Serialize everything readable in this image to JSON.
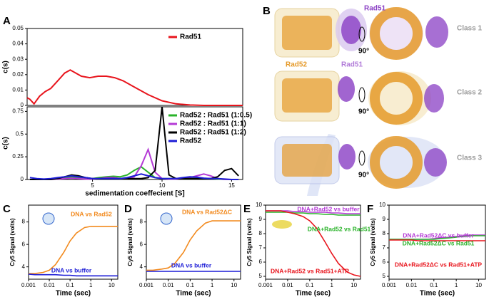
{
  "chart_data": [
    {
      "type": "line",
      "panel": "A",
      "ylabel": "c(s)",
      "xlim": [
        0.3,
        15.8
      ],
      "ylim": [
        0,
        0.05
      ],
      "yticks": [
        0,
        0.01,
        0.02,
        0.03,
        0.04,
        0.05
      ],
      "legend": "upper right",
      "x": [
        0.3,
        0.5,
        0.8,
        1.2,
        1.6,
        2,
        2.5,
        3,
        3.4,
        3.8,
        4.2,
        4.8,
        5.4,
        6,
        6.6,
        7.2,
        8,
        9,
        10,
        11,
        12,
        13,
        14,
        15,
        15.8
      ],
      "series": [
        {
          "name": "Rad51",
          "color": "#e8141c",
          "values": [
            0.005,
            0.004,
            0.001,
            0.006,
            0.009,
            0.011,
            0.016,
            0.021,
            0.023,
            0.021,
            0.019,
            0.018,
            0.019,
            0.019,
            0.018,
            0.016,
            0.012,
            0.007,
            0.003,
            0.001,
            0.0003,
            0,
            0,
            0,
            0
          ]
        }
      ]
    },
    {
      "type": "line",
      "ylabel": "c(s)",
      "xlabel": "sedimentation coeffecient [S]",
      "xlim": [
        0.3,
        15.8
      ],
      "ylim": [
        0,
        0.8
      ],
      "xticks": [
        5,
        10,
        15
      ],
      "yticks": [
        0,
        0.25,
        0.5,
        0.75
      ],
      "legend": "upper right",
      "x": [
        0.5,
        1,
        1.5,
        2,
        2.5,
        3,
        3.5,
        4,
        4.5,
        5,
        5.5,
        6,
        6.5,
        7,
        7.5,
        8,
        8.5,
        9,
        9.5,
        10,
        10.5,
        11,
        11.5,
        12,
        12.5,
        13,
        13.5,
        14,
        14.5,
        15,
        15.5
      ],
      "series": [
        {
          "name": "Rad52 : Rad51 (1:0.5)",
          "color": "#2ab32a",
          "values": [
            0,
            0,
            0,
            0.005,
            0.01,
            0.02,
            0.025,
            0.02,
            0.01,
            0.01,
            0.02,
            0.03,
            0.035,
            0.03,
            0.05,
            0.1,
            0.14,
            0.08,
            0.02,
            0.01,
            0.01,
            0.01,
            0.01,
            0.01,
            0.01,
            0.01,
            0.01,
            0.005,
            0,
            0,
            0
          ]
        },
        {
          "name": "Rad52 : Rad51 (1:1)",
          "color": "#b43ad6",
          "values": [
            0,
            0,
            0,
            0,
            0.005,
            0.01,
            0.015,
            0.01,
            0.005,
            0.005,
            0.01,
            0.02,
            0.02,
            0.01,
            0.01,
            0.03,
            0.15,
            0.33,
            0.08,
            0.01,
            0.005,
            0.005,
            0.01,
            0.02,
            0.04,
            0.06,
            0.04,
            0.01,
            0,
            0,
            0
          ]
        },
        {
          "name": "Rad52 : Rad51 (1:2)",
          "color": "#000000",
          "values": [
            0,
            0,
            0,
            0,
            0.01,
            0.03,
            0.05,
            0.04,
            0.02,
            0.01,
            0.01,
            0.01,
            0.01,
            0.01,
            0.01,
            0.01,
            0.01,
            0.02,
            0.1,
            0.8,
            0.05,
            0.01,
            0.01,
            0.01,
            0.01,
            0.01,
            0.01,
            0.03,
            0.1,
            0.12,
            0.04
          ]
        },
        {
          "name": "Rad52",
          "color": "#1c1cd6",
          "values": [
            0.02,
            0.01,
            0.005,
            0.01,
            0.02,
            0.03,
            0.04,
            0.03,
            0.02,
            0.01,
            0.01,
            0.01,
            0.01,
            0.01,
            0.02,
            0.04,
            0.06,
            0.04,
            0.02,
            0.01,
            0.01,
            0.01,
            0.02,
            0.03,
            0.025,
            0.015,
            0.01,
            0.01,
            0.005,
            0,
            0
          ]
        }
      ]
    },
    {
      "type": "line",
      "panel": "C",
      "xscale": "log",
      "xlabel": "Time (sec)",
      "ylabel": "Cy5 Signal (volts)",
      "xlim": [
        0.001,
        20
      ],
      "ylim": [
        2.9,
        9.5
      ],
      "xticks": [
        0.001,
        0.01,
        0.1,
        1,
        10
      ],
      "yticks": [
        4,
        6,
        8
      ],
      "x": [
        0.001,
        0.002,
        0.005,
        0.01,
        0.02,
        0.05,
        0.1,
        0.2,
        0.5,
        1,
        2,
        5,
        10,
        20
      ],
      "series": [
        {
          "name": "DNA vs Rad52",
          "color": "#f28a1e",
          "values": [
            3.4,
            3.4,
            3.5,
            3.7,
            4.2,
            5.3,
            6.3,
            7,
            7.5,
            7.6,
            7.6,
            7.6,
            7.6,
            7.6
          ]
        },
        {
          "name": "DNA vs buffer",
          "color": "#1c1cd6",
          "values": [
            3.35,
            3.3,
            3.3,
            3.3,
            3.3,
            3.25,
            3.25,
            3.2,
            3.2,
            3.2,
            3.2,
            3.2,
            3.2,
            3.2
          ]
        }
      ]
    },
    {
      "type": "line",
      "panel": "D",
      "xscale": "log",
      "xlabel": "Time (sec)",
      "ylabel": "Cy5 Signal (volts)",
      "xlim": [
        0.001,
        20
      ],
      "ylim": [
        2.9,
        9.5
      ],
      "xticks": [
        0.001,
        0.01,
        0.1,
        1,
        10
      ],
      "yticks": [
        4,
        6,
        8
      ],
      "x": [
        0.001,
        0.002,
        0.005,
        0.01,
        0.02,
        0.05,
        0.1,
        0.2,
        0.5,
        1,
        2,
        5,
        10,
        20
      ],
      "series": [
        {
          "name": "DNA vs Rad52ΔC",
          "color": "#f28a1e",
          "values": [
            3.7,
            3.7,
            3.8,
            3.9,
            4.3,
            5.3,
            6.4,
            7.2,
            7.9,
            8.1,
            8.1,
            8.1,
            8.1,
            8.1
          ]
        },
        {
          "name": "DNA vs buffer",
          "color": "#1c1cd6",
          "values": [
            3.6,
            3.6,
            3.6,
            3.6,
            3.6,
            3.6,
            3.6,
            3.6,
            3.6,
            3.6,
            3.6,
            3.6,
            3.6,
            3.6
          ]
        }
      ]
    },
    {
      "type": "line",
      "panel": "E",
      "xscale": "log",
      "xlabel": "Time (sec)",
      "ylabel": "Cy5 Signal (volts)",
      "xlim": [
        0.001,
        20
      ],
      "ylim": [
        4.8,
        10
      ],
      "xticks": [
        0.001,
        0.01,
        0.1,
        1,
        10
      ],
      "yticks": [
        5,
        6,
        7,
        8,
        9,
        10
      ],
      "x": [
        0.001,
        0.002,
        0.005,
        0.01,
        0.02,
        0.05,
        0.1,
        0.2,
        0.5,
        1,
        2,
        5,
        10,
        20
      ],
      "series": [
        {
          "name": "DNA+Rad52 vs buffer",
          "color": "#b43ad6",
          "values": [
            9.6,
            9.6,
            9.6,
            9.6,
            9.55,
            9.55,
            9.5,
            9.5,
            9.5,
            9.45,
            9.45,
            9.4,
            9.4,
            9.4
          ]
        },
        {
          "name": "DNA+Rad52 vs Rad51",
          "color": "#2ab32a",
          "values": [
            9.5,
            9.5,
            9.5,
            9.5,
            9.45,
            9.45,
            9.4,
            9.4,
            9.35,
            9.35,
            9.3,
            9.3,
            9.3,
            9.3
          ]
        },
        {
          "name": "DNA+Rad52 vs Rad51+ATP",
          "color": "#e8141c",
          "values": [
            9.6,
            9.6,
            9.6,
            9.5,
            9.4,
            9.2,
            8.9,
            8.4,
            7.4,
            6.6,
            5.9,
            5.3,
            5.1,
            5.0
          ]
        }
      ]
    },
    {
      "type": "line",
      "panel": "F",
      "xscale": "log",
      "xlabel": "Time (sec)",
      "ylabel": "Cy5 Signal (volts)",
      "xlim": [
        0.001,
        20
      ],
      "ylim": [
        4.8,
        10
      ],
      "xticks": [
        0.001,
        0.01,
        0.1,
        1,
        10
      ],
      "yticks": [
        5,
        6,
        7,
        8,
        9,
        10
      ],
      "x": [
        0.001,
        0.002,
        0.005,
        0.01,
        0.02,
        0.05,
        0.1,
        0.2,
        0.5,
        1,
        2,
        5,
        10,
        20
      ],
      "series": [
        {
          "name": "DNA+Rad52ΔC vs buffer",
          "color": "#b43ad6",
          "values": [
            7.6,
            7.6,
            7.6,
            7.6,
            7.6,
            7.6,
            7.65,
            7.7,
            7.75,
            7.8,
            7.85,
            7.9,
            7.9,
            7.9
          ]
        },
        {
          "name": "DNA+Rad52ΔC vs Rad51",
          "color": "#2ab32a",
          "values": [
            7.6,
            7.6,
            7.6,
            7.6,
            7.6,
            7.6,
            7.6,
            7.65,
            7.7,
            7.75,
            7.8,
            7.85,
            7.85,
            7.85
          ]
        },
        {
          "name": "DNA+Rad52ΔC vs Rad51+ATP",
          "color": "#e8141c",
          "values": [
            7.55,
            7.55,
            7.55,
            7.55,
            7.5,
            7.5,
            7.5,
            7.5,
            7.5,
            7.5,
            7.5,
            7.5,
            7.5,
            7.5
          ]
        }
      ]
    }
  ],
  "panel_b": {
    "label": "B",
    "rad51_top": "Rad51",
    "rad52": "Rad52",
    "rad51": "Rad51",
    "rotations": [
      "90°",
      "90°",
      "90°"
    ],
    "classes": [
      "Class 1",
      "Class 2",
      "Class 3"
    ]
  }
}
